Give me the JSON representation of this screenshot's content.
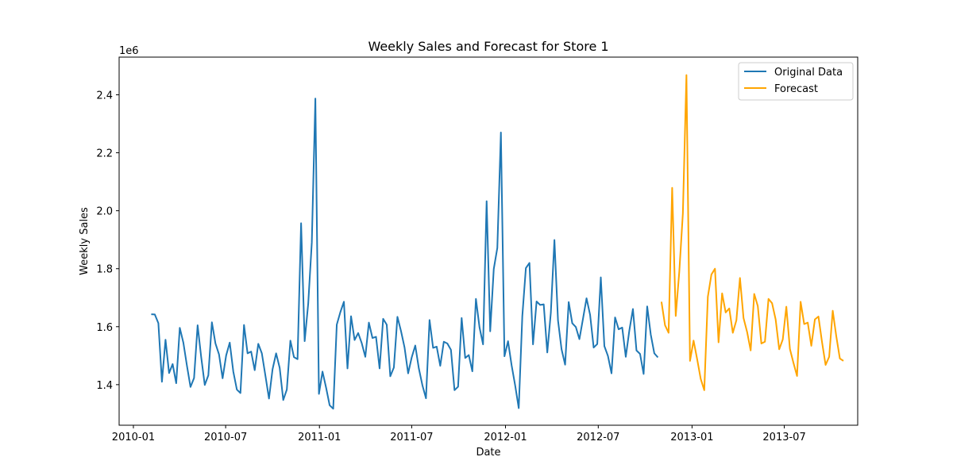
{
  "chart_data": {
    "type": "line",
    "title": "Weekly Sales and Forecast for Store 1",
    "xlabel": "Date",
    "ylabel": "Weekly Sales",
    "y_offset_label": "1e6",
    "x_ticks": [
      "2010-01",
      "2010-07",
      "2011-01",
      "2011-07",
      "2012-01",
      "2012-07",
      "2013-01",
      "2013-07"
    ],
    "y_ticks": [
      1.4,
      1.6,
      1.8,
      2.0,
      2.2,
      2.4
    ],
    "xlim": [
      "2009-12-04",
      "2013-11-22"
    ],
    "ylim": [
      1.26,
      2.53
    ],
    "legend_position": "top-right",
    "grid": false,
    "series": [
      {
        "name": "Original Data",
        "color": "#1f77b4",
        "start_date": "2010-02-05",
        "step_days": 7,
        "values": [
          1.643,
          1.642,
          1.612,
          1.41,
          1.555,
          1.44,
          1.471,
          1.405,
          1.596,
          1.545,
          1.466,
          1.392,
          1.423,
          1.605,
          1.495,
          1.399,
          1.432,
          1.615,
          1.542,
          1.504,
          1.422,
          1.501,
          1.545,
          1.445,
          1.383,
          1.371,
          1.606,
          1.508,
          1.514,
          1.45,
          1.541,
          1.508,
          1.431,
          1.352,
          1.453,
          1.508,
          1.458,
          1.347,
          1.383,
          1.552,
          1.495,
          1.488,
          1.957,
          1.55,
          1.68,
          1.89,
          2.387,
          1.368,
          1.445,
          1.39,
          1.329,
          1.317,
          1.607,
          1.65,
          1.686,
          1.456,
          1.636,
          1.554,
          1.578,
          1.543,
          1.496,
          1.614,
          1.561,
          1.565,
          1.456,
          1.627,
          1.607,
          1.429,
          1.459,
          1.634,
          1.585,
          1.528,
          1.439,
          1.494,
          1.535,
          1.456,
          1.398,
          1.353,
          1.623,
          1.527,
          1.531,
          1.465,
          1.548,
          1.542,
          1.52,
          1.381,
          1.393,
          1.63,
          1.492,
          1.502,
          1.446,
          1.696,
          1.598,
          1.539,
          2.033,
          1.584,
          1.799,
          1.872,
          2.27,
          1.498,
          1.55,
          1.467,
          1.397,
          1.319,
          1.636,
          1.802,
          1.82,
          1.539,
          1.687,
          1.675,
          1.677,
          1.511,
          1.649,
          1.899,
          1.622,
          1.522,
          1.469,
          1.685,
          1.612,
          1.599,
          1.557,
          1.627,
          1.698,
          1.641,
          1.528,
          1.54,
          1.77,
          1.533,
          1.499,
          1.439,
          1.632,
          1.591,
          1.597,
          1.496,
          1.587,
          1.661,
          1.518,
          1.506,
          1.437,
          1.67,
          1.573,
          1.508,
          1.494
        ]
      },
      {
        "name": "Forecast",
        "color": "#ffa500",
        "start_date": "2012-11-02",
        "step_days": 7,
        "values": [
          1.686,
          1.605,
          1.579,
          2.079,
          1.637,
          1.79,
          1.991,
          2.468,
          1.482,
          1.552,
          1.488,
          1.42,
          1.381,
          1.703,
          1.78,
          1.8,
          1.546,
          1.715,
          1.649,
          1.663,
          1.579,
          1.622,
          1.768,
          1.63,
          1.582,
          1.518,
          1.713,
          1.671,
          1.542,
          1.548,
          1.696,
          1.681,
          1.625,
          1.522,
          1.556,
          1.669,
          1.523,
          1.475,
          1.43,
          1.686,
          1.609,
          1.614,
          1.534,
          1.625,
          1.635,
          1.547,
          1.468,
          1.496,
          1.655,
          1.567,
          1.49,
          1.482
        ]
      }
    ]
  }
}
